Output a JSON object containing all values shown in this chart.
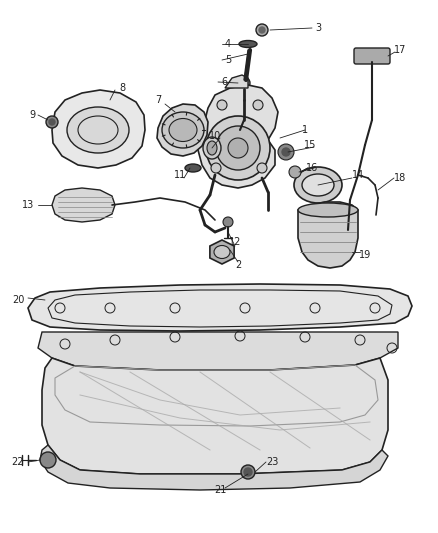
{
  "bg_color": "#ffffff",
  "line_color": "#222222",
  "label_color": "#222222",
  "fig_w": 4.38,
  "fig_h": 5.33,
  "dpi": 100
}
